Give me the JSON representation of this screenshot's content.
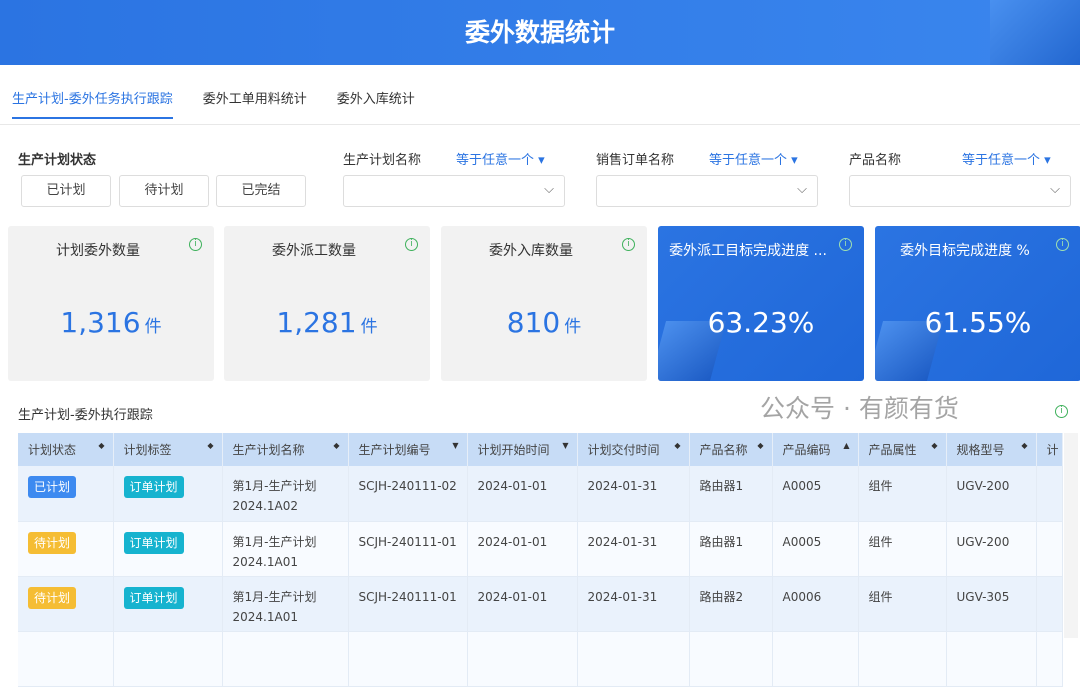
{
  "header": {
    "title": "委外数据统计"
  },
  "tabs": [
    {
      "label": "生产计划-委外任务执行跟踪",
      "active": true
    },
    {
      "label": "委外工单用料统计"
    },
    {
      "label": "委外入库统计"
    }
  ],
  "filters": {
    "status_label": "生产计划状态",
    "status_buttons": [
      "已计划",
      "待计划",
      "已完结"
    ],
    "plan_name": {
      "label": "生产计划名称",
      "operator": "等于任意一个 ▾"
    },
    "sales_order": {
      "label": "销售订单名称",
      "operator": "等于任意一个 ▾"
    },
    "product_name": {
      "label": "产品名称",
      "operator": "等于任意一个 ▾"
    }
  },
  "cards": [
    {
      "title": "计划委外数量",
      "value": "1,316",
      "unit": "件"
    },
    {
      "title": "委外派工数量",
      "value": "1,281",
      "unit": "件"
    },
    {
      "title": "委外入库数量",
      "value": "810",
      "unit": "件"
    },
    {
      "title": "委外派工目标完成进度 ...",
      "value": "63.23%"
    },
    {
      "title": "委外目标完成进度 %",
      "value": "61.55%"
    }
  ],
  "table": {
    "title": "生产计划-委外执行跟踪",
    "columns": [
      {
        "label": "计划状态",
        "sort": "◆"
      },
      {
        "label": "计划标签",
        "sort": "◆"
      },
      {
        "label": "生产计划名称",
        "sort": "◆"
      },
      {
        "label": "生产计划编号",
        "sort": "▼"
      },
      {
        "label": "计划开始时间",
        "sort": "▼"
      },
      {
        "label": "计划交付时间",
        "sort": "◆"
      },
      {
        "label": "产品名称",
        "sort": "◆"
      },
      {
        "label": "产品编码",
        "sort": "▲"
      },
      {
        "label": "产品属性",
        "sort": "◆"
      },
      {
        "label": "规格型号",
        "sort": "◆"
      },
      {
        "label": "计",
        "sort": ""
      }
    ],
    "rows": [
      {
        "status": "已计划",
        "status_color": "#3d8af0",
        "tag": "订单计划",
        "name1": "第1月-生产计划",
        "name2": "2024.1A02",
        "code": "SCJH-240111-02",
        "start": "2024-01-01",
        "end": "2024-01-31",
        "product": "路由器1",
        "pcode": "A0005",
        "attr": "组件",
        "spec": "UGV-200"
      },
      {
        "status": "待计划",
        "status_color": "#f5bd34",
        "tag": "订单计划",
        "name1": "第1月-生产计划",
        "name2": "2024.1A01",
        "code": "SCJH-240111-01",
        "start": "2024-01-01",
        "end": "2024-01-31",
        "product": "路由器1",
        "pcode": "A0005",
        "attr": "组件",
        "spec": "UGV-200"
      },
      {
        "status": "待计划",
        "status_color": "#f5bd34",
        "tag": "订单计划",
        "name1": "第1月-生产计划",
        "name2": "2024.1A01",
        "code": "SCJH-240111-01",
        "start": "2024-01-01",
        "end": "2024-01-31",
        "product": "路由器2",
        "pcode": "A0006",
        "attr": "组件",
        "spec": "UGV-305"
      }
    ],
    "tag_color": "#16b3cf"
  },
  "watermark": "公众号 · 有颜有货"
}
